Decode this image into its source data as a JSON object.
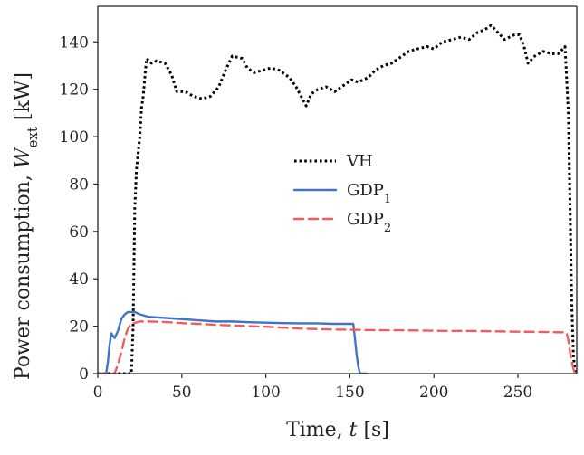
{
  "chart_data": {
    "type": "line",
    "title": "",
    "xlabel": {
      "text": "Time, ",
      "var": "t",
      "unit": " [s]"
    },
    "ylabel": {
      "text": "Power consumption, ",
      "var": "W",
      "sub": "ext",
      "unit": " [kW]"
    },
    "xlim": [
      0,
      285
    ],
    "ylim": [
      0,
      155
    ],
    "xticks": [
      0,
      50,
      100,
      150,
      200,
      250
    ],
    "yticks": [
      0,
      20,
      40,
      60,
      80,
      100,
      120,
      140
    ],
    "grid": false,
    "legend": {
      "placement": "center",
      "entries": [
        {
          "base": "VH",
          "sub": ""
        },
        {
          "base": "GDP",
          "sub": "1"
        },
        {
          "base": "GDP",
          "sub": "2"
        }
      ]
    },
    "series": [
      {
        "name": "VH",
        "color": "#000000",
        "style": "dotted",
        "points": [
          [
            0,
            0
          ],
          [
            20,
            0
          ],
          [
            21,
            20
          ],
          [
            22,
            70
          ],
          [
            23,
            86
          ],
          [
            25,
            100
          ],
          [
            26,
            112
          ],
          [
            27,
            117
          ],
          [
            28,
            125
          ],
          [
            29,
            133
          ],
          [
            32,
            131
          ],
          [
            35,
            132
          ],
          [
            40,
            131
          ],
          [
            44,
            126
          ],
          [
            47,
            119
          ],
          [
            52,
            119
          ],
          [
            57,
            117
          ],
          [
            62,
            116
          ],
          [
            67,
            117
          ],
          [
            72,
            121
          ],
          [
            76,
            128
          ],
          [
            80,
            134
          ],
          [
            86,
            133
          ],
          [
            89,
            129
          ],
          [
            93,
            127
          ],
          [
            98,
            128
          ],
          [
            103,
            129
          ],
          [
            108,
            128
          ],
          [
            114,
            125
          ],
          [
            118,
            121
          ],
          [
            121,
            117
          ],
          [
            124,
            113
          ],
          [
            127,
            118
          ],
          [
            131,
            120
          ],
          [
            136,
            121
          ],
          [
            141,
            119
          ],
          [
            145,
            121
          ],
          [
            151,
            124
          ],
          [
            155,
            123
          ],
          [
            161,
            125
          ],
          [
            165,
            128
          ],
          [
            170,
            130
          ],
          [
            175,
            131
          ],
          [
            181,
            134
          ],
          [
            185,
            136
          ],
          [
            190,
            137
          ],
          [
            196,
            138
          ],
          [
            200,
            137
          ],
          [
            205,
            140
          ],
          [
            211,
            141
          ],
          [
            216,
            142
          ],
          [
            221,
            141
          ],
          [
            226,
            144
          ],
          [
            230,
            145
          ],
          [
            234,
            147
          ],
          [
            238,
            144
          ],
          [
            242,
            141
          ],
          [
            245,
            142
          ],
          [
            248,
            143
          ],
          [
            251,
            143
          ],
          [
            254,
            137
          ],
          [
            256,
            131
          ],
          [
            260,
            134
          ],
          [
            265,
            136
          ],
          [
            270,
            135
          ],
          [
            274,
            135
          ],
          [
            278,
            138
          ],
          [
            280,
            110
          ],
          [
            281,
            70
          ],
          [
            282,
            30
          ],
          [
            283,
            8
          ],
          [
            284,
            0
          ],
          [
            285,
            0
          ]
        ]
      },
      {
        "name": "GDP₁",
        "color": "#4472c4",
        "style": "solid",
        "points": [
          [
            0,
            0
          ],
          [
            5,
            0
          ],
          [
            6,
            5
          ],
          [
            7,
            12
          ],
          [
            8,
            17
          ],
          [
            10,
            15
          ],
          [
            12,
            18
          ],
          [
            14,
            23
          ],
          [
            16,
            25
          ],
          [
            18,
            26
          ],
          [
            20,
            26
          ],
          [
            22,
            26
          ],
          [
            25,
            25
          ],
          [
            30,
            24
          ],
          [
            40,
            23.5
          ],
          [
            50,
            23
          ],
          [
            60,
            22.5
          ],
          [
            70,
            22
          ],
          [
            80,
            22
          ],
          [
            90,
            21.7
          ],
          [
            100,
            21.5
          ],
          [
            110,
            21.3
          ],
          [
            120,
            21.2
          ],
          [
            130,
            21.2
          ],
          [
            140,
            21
          ],
          [
            150,
            21
          ],
          [
            152,
            21
          ],
          [
            153,
            15
          ],
          [
            154,
            8
          ],
          [
            155,
            3
          ],
          [
            156,
            0
          ],
          [
            160,
            0
          ]
        ]
      },
      {
        "name": "GDP₂",
        "color": "#f25c5c",
        "style": "dashed",
        "points": [
          [
            0,
            0
          ],
          [
            10,
            0
          ],
          [
            12,
            4
          ],
          [
            14,
            9
          ],
          [
            16,
            15
          ],
          [
            18,
            19
          ],
          [
            20,
            21
          ],
          [
            25,
            22
          ],
          [
            30,
            22
          ],
          [
            40,
            21.8
          ],
          [
            50,
            21.3
          ],
          [
            60,
            21
          ],
          [
            70,
            20.6
          ],
          [
            80,
            20.3
          ],
          [
            90,
            20
          ],
          [
            100,
            19.8
          ],
          [
            110,
            19.4
          ],
          [
            120,
            19
          ],
          [
            130,
            18.8
          ],
          [
            140,
            18.6
          ],
          [
            150,
            18.5
          ],
          [
            160,
            18.4
          ],
          [
            170,
            18.3
          ],
          [
            180,
            18.3
          ],
          [
            190,
            18.2
          ],
          [
            200,
            18.1
          ],
          [
            210,
            18
          ],
          [
            220,
            18
          ],
          [
            230,
            17.9
          ],
          [
            240,
            17.8
          ],
          [
            250,
            17.7
          ],
          [
            260,
            17.6
          ],
          [
            270,
            17.5
          ],
          [
            278,
            17.4
          ],
          [
            279,
            17.2
          ],
          [
            280,
            14
          ],
          [
            281,
            9
          ],
          [
            282,
            5
          ],
          [
            283,
            2
          ],
          [
            284,
            0
          ],
          [
            285,
            0
          ]
        ]
      }
    ]
  }
}
